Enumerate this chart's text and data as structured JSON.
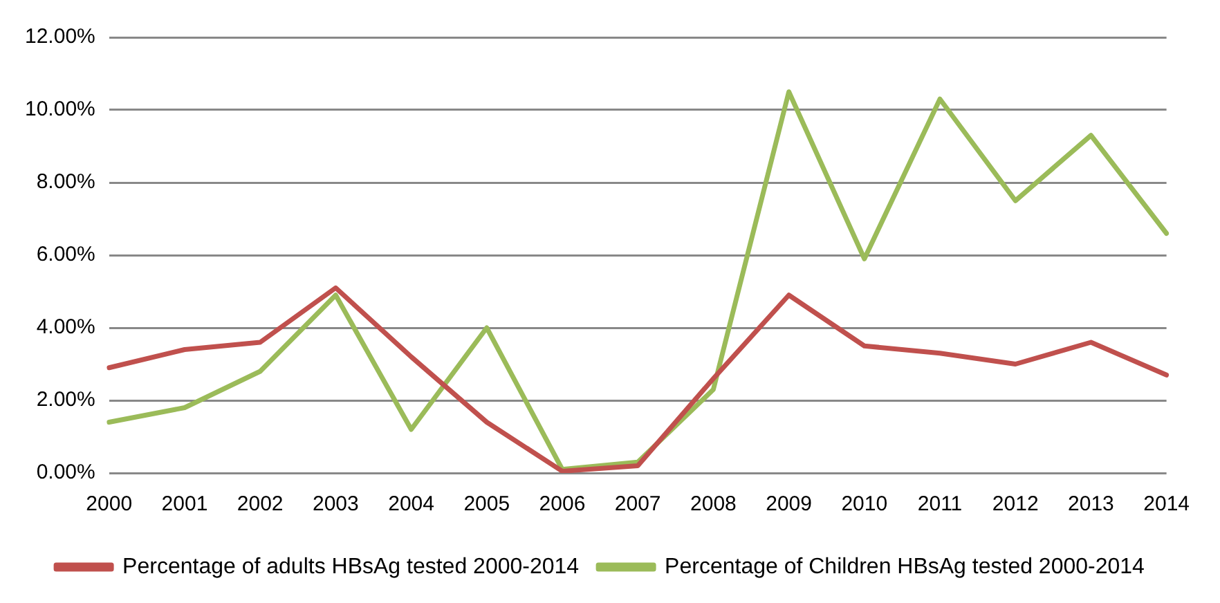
{
  "chart_data": {
    "type": "line",
    "categories": [
      "2000",
      "2001",
      "2002",
      "2003",
      "2004",
      "2005",
      "2006",
      "2007",
      "2008",
      "2009",
      "2010",
      "2011",
      "2012",
      "2013",
      "2014"
    ],
    "series": [
      {
        "name": "Percentage of adults HBsAg tested 2000-2014",
        "color": "#c0504d",
        "values": [
          2.9,
          3.4,
          3.6,
          5.1,
          3.2,
          1.4,
          0.05,
          0.2,
          2.6,
          4.9,
          3.5,
          3.3,
          3.0,
          3.6,
          2.7
        ]
      },
      {
        "name": "Percentage of Children HBsAg tested 2000-2014",
        "color": "#9bbb59",
        "values": [
          1.4,
          1.8,
          2.8,
          4.9,
          1.2,
          4.0,
          0.1,
          0.3,
          2.3,
          10.5,
          5.9,
          10.3,
          7.5,
          9.3,
          6.6
        ]
      }
    ],
    "ylim": [
      0,
      12
    ],
    "yticks": [
      {
        "value": 0,
        "label": "0.00%"
      },
      {
        "value": 2,
        "label": "2.00%"
      },
      {
        "value": 4,
        "label": "4.00%"
      },
      {
        "value": 6,
        "label": "6.00%"
      },
      {
        "value": 8,
        "label": "8.00%"
      },
      {
        "value": 10,
        "label": "10.00%"
      },
      {
        "value": 12,
        "label": "12.00%"
      }
    ],
    "grid": "y",
    "legend": "bottom",
    "marker": "none",
    "line_style": "solid"
  }
}
